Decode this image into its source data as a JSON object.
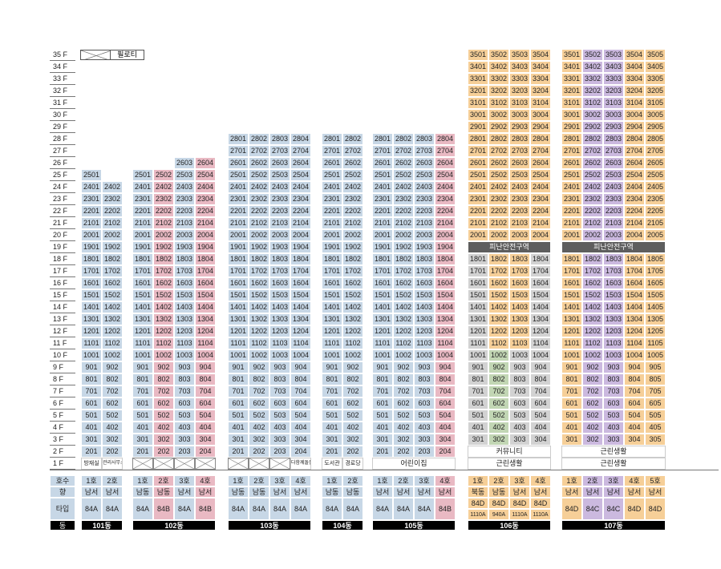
{
  "legend": {
    "label": "필로티"
  },
  "floor_suffix": " F",
  "floors_top": 35,
  "colors": {
    "blue": "#c7d7e6",
    "pink": "#e9b9c3",
    "orange": "#f6cf98",
    "green": "#c2d6b4",
    "purple": "#cbb9df",
    "gray": "#d2d2d2",
    "refuge": "#5e5e5e",
    "white": "#ffffff",
    "dark": "#000000"
  },
  "buildings": [
    {
      "name": "101동",
      "units": [
        {
          "no": "1호",
          "dir": "남서",
          "types": [
            "84A"
          ],
          "ufrom": 2,
          "uto": 25,
          "c": "blue",
          "f1": "방재실",
          "f1c": "white",
          "fs": "7px",
          "over": {}
        },
        {
          "no": "2호",
          "dir": "남서",
          "types": [
            "84A"
          ],
          "ufrom": 2,
          "uto": 24,
          "c": "blue",
          "f1": "관리사무소",
          "f1c": "white",
          "fs": "6px",
          "over": {}
        }
      ]
    },
    {
      "name": "102동",
      "units": [
        {
          "no": "1호",
          "dir": "남동",
          "types": [
            "84A"
          ],
          "ufrom": 2,
          "uto": 25,
          "c": "blue",
          "f1": "",
          "f1c": "x",
          "over": {}
        },
        {
          "no": "2호",
          "dir": "남동",
          "types": [
            "84B"
          ],
          "ufrom": 2,
          "uto": 25,
          "c": "pink",
          "f1": "",
          "f1c": "x",
          "over": {}
        },
        {
          "no": "3호",
          "dir": "남서",
          "types": [
            "84A"
          ],
          "ufrom": 2,
          "uto": 26,
          "c": "blue",
          "f1": "",
          "f1c": "x",
          "over": {}
        },
        {
          "no": "4호",
          "dir": "남서",
          "types": [
            "84B"
          ],
          "ufrom": 2,
          "uto": 26,
          "c": "pink",
          "f1": "",
          "f1c": "x",
          "over": {}
        }
      ]
    },
    {
      "name": "103동",
      "units": [
        {
          "no": "1호",
          "dir": "남동",
          "types": [
            "84A"
          ],
          "ufrom": 2,
          "uto": 28,
          "c": "blue",
          "f1": "",
          "f1c": "x",
          "over": {}
        },
        {
          "no": "2호",
          "dir": "남동",
          "types": [
            "84A"
          ],
          "ufrom": 2,
          "uto": 28,
          "c": "blue",
          "f1": "",
          "f1c": "x",
          "over": {}
        },
        {
          "no": "3호",
          "dir": "남서",
          "types": [
            "84A"
          ],
          "ufrom": 2,
          "uto": 28,
          "c": "blue",
          "f1": "",
          "f1c": "x",
          "over": {}
        },
        {
          "no": "4호",
          "dir": "남서",
          "types": [
            "84A"
          ],
          "ufrom": 2,
          "uto": 28,
          "c": "blue",
          "f1": "다함께돌봄",
          "f1c": "white",
          "fs": "6px",
          "over": {}
        }
      ]
    },
    {
      "name": "104동",
      "units": [
        {
          "no": "1호",
          "dir": "남동",
          "types": [
            "84A"
          ],
          "ufrom": 2,
          "uto": 28,
          "c": "blue",
          "f1": "도서관",
          "f1c": "white",
          "fs": "7px",
          "over": {}
        },
        {
          "no": "2호",
          "dir": "남동",
          "types": [
            "84A"
          ],
          "ufrom": 2,
          "uto": 28,
          "c": "blue",
          "f1": "경로당",
          "f1c": "white",
          "fs": "7px",
          "over": {}
        }
      ]
    },
    {
      "name": "105동",
      "units": [
        {
          "no": "1호",
          "dir": "남서",
          "types": [
            "84A"
          ],
          "ufrom": 2,
          "uto": 28,
          "c": "blue",
          "f1": "",
          "f1c": "white",
          "over": {}
        },
        {
          "no": "2호",
          "dir": "남서",
          "types": [
            "84A"
          ],
          "ufrom": 2,
          "uto": 28,
          "c": "blue",
          "f1": "",
          "f1c": "white",
          "over": {}
        },
        {
          "no": "3호",
          "dir": "남서",
          "types": [
            "84A"
          ],
          "ufrom": 2,
          "uto": 28,
          "c": "blue",
          "f1": "",
          "f1c": "white",
          "over": {}
        },
        {
          "no": "4호",
          "dir": "남서",
          "types": [
            "84B"
          ],
          "ufrom": 2,
          "uto": 28,
          "c": "pink",
          "f1": "",
          "f1c": "white",
          "over": {}
        }
      ]
    },
    {
      "name": "106동",
      "units": [
        {
          "no": "1호",
          "dir": "북동",
          "types": [
            "84D",
            "1110A"
          ],
          "ufrom": 3,
          "uto": 35,
          "c": "orange",
          "over": {
            "3": "gray",
            "4": "gray",
            "5": "gray",
            "6": "gray",
            "7": "gray",
            "8": "gray",
            "9": "gray",
            "10": "gray",
            "11": "gray",
            "12": "gray",
            "13": "gray",
            "14": "gray",
            "15": "gray",
            "16": "gray",
            "17": "gray",
            "18": "gray"
          }
        },
        {
          "no": "2호",
          "dir": "남동",
          "types": [
            "84D",
            "940A"
          ],
          "ufrom": 3,
          "uto": 35,
          "c": "orange",
          "over": {
            "3": "green",
            "4": "green",
            "5": "green",
            "6": "green",
            "7": "green",
            "8": "green",
            "9": "green",
            "10": "green"
          }
        },
        {
          "no": "3호",
          "dir": "남서",
          "types": [
            "84D",
            "1110A"
          ],
          "ufrom": 3,
          "uto": 35,
          "c": "orange",
          "over": {
            "3": "gray",
            "4": "gray",
            "5": "gray",
            "6": "gray",
            "7": "gray",
            "8": "gray",
            "9": "gray",
            "10": "gray"
          }
        },
        {
          "no": "4호",
          "dir": "남서",
          "types": [
            "84D",
            "1110A"
          ],
          "ufrom": 3,
          "uto": 35,
          "c": "orange",
          "over": {
            "3": "gray",
            "4": "gray",
            "5": "gray",
            "6": "gray",
            "7": "gray",
            "8": "gray",
            "9": "gray",
            "10": "gray",
            "11": "gray",
            "12": "gray",
            "13": "gray",
            "14": "gray",
            "15": "gray",
            "16": "gray",
            "17": "gray",
            "18": "gray"
          }
        }
      ]
    },
    {
      "name": "107동",
      "units": [
        {
          "no": "1호",
          "dir": "남서",
          "types": [
            "84D"
          ],
          "ufrom": 3,
          "uto": 35,
          "c": "orange",
          "over": {}
        },
        {
          "no": "2호",
          "dir": "남서",
          "types": [
            "84C"
          ],
          "ufrom": 3,
          "uto": 35,
          "c": "purple",
          "over": {}
        },
        {
          "no": "3호",
          "dir": "남서",
          "types": [
            "84C"
          ],
          "ufrom": 3,
          "uto": 35,
          "c": "purple",
          "over": {}
        },
        {
          "no": "4호",
          "dir": "남서",
          "types": [
            "84D"
          ],
          "ufrom": 3,
          "uto": 35,
          "c": "orange",
          "over": {}
        },
        {
          "no": "5호",
          "dir": "남서",
          "types": [
            "84D"
          ],
          "ufrom": 3,
          "uto": 35,
          "c": "orange",
          "over": {}
        }
      ]
    }
  ],
  "merged": [
    {
      "b": 4,
      "from": 0,
      "to": 3,
      "floor": 1,
      "text": "어린이집",
      "c": "white"
    },
    {
      "b": 5,
      "from": 0,
      "to": 3,
      "floor": 2,
      "text": "커뮤니티",
      "c": "white"
    },
    {
      "b": 5,
      "from": 0,
      "to": 3,
      "floor": 1,
      "text": "근린생활",
      "c": "white"
    },
    {
      "b": 5,
      "from": 0,
      "to": 3,
      "floor": 19,
      "text": "피난안전구역",
      "c": "refuge"
    },
    {
      "b": 6,
      "from": 0,
      "to": 4,
      "floor": 2,
      "text": "근린생활",
      "c": "white"
    },
    {
      "b": 6,
      "from": 0,
      "to": 4,
      "floor": 1,
      "text": "근린생활",
      "c": "white"
    },
    {
      "b": 6,
      "from": 0,
      "to": 4,
      "floor": 19,
      "text": "피난안전구역",
      "c": "refuge"
    }
  ],
  "rows": {
    "unit_label": "호수",
    "dir_label": "향",
    "type_label": "타입",
    "bldg_label": "동"
  }
}
